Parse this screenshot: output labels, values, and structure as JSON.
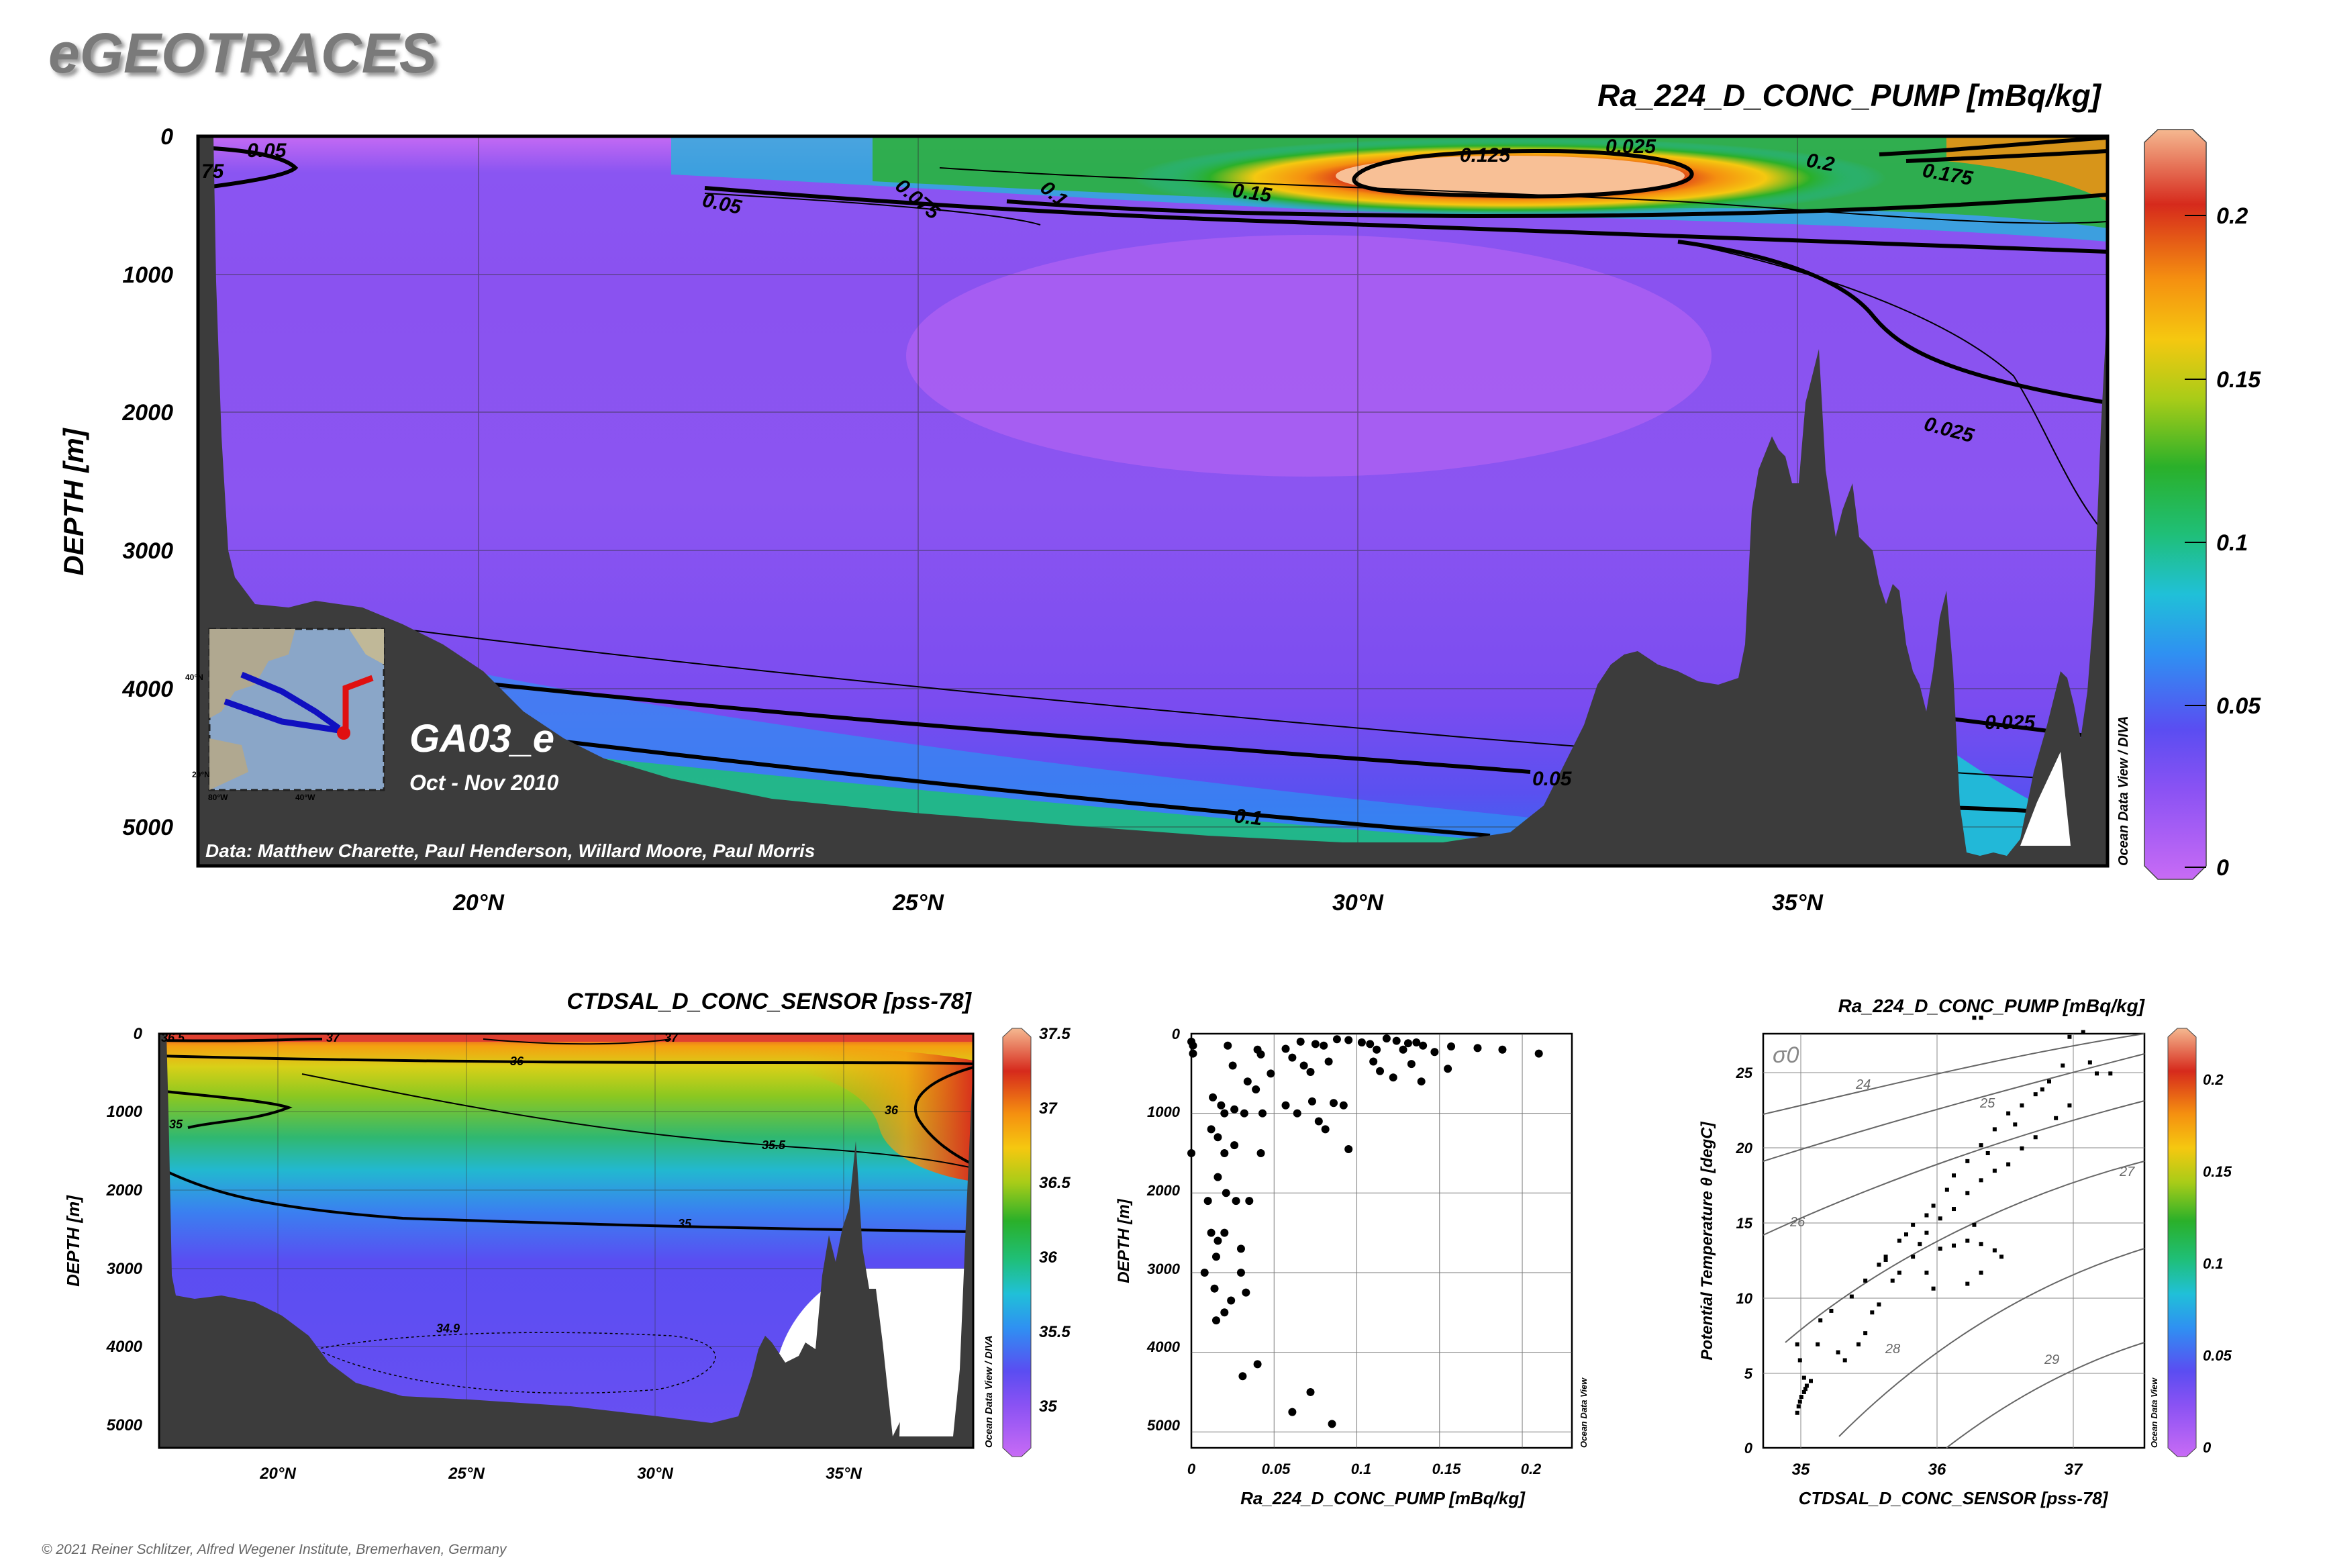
{
  "brand": "eGEOTRACES",
  "footer": "© 2021 Reiner Schlitzer, Alfred Wegener Institute, Bremerhaven, Germany",
  "colors": {
    "ocean_ramp": [
      "#c86bf5",
      "#9a5ef5",
      "#7c4df0",
      "#5a4df2",
      "#3a8cf2",
      "#22b8e8",
      "#1fc4a0",
      "#22b02c",
      "#a8cc18",
      "#f5c810",
      "#f59010",
      "#d62a1c",
      "#f5b890"
    ],
    "seafloor": "#3c3c3c",
    "contour": "#000000"
  },
  "chart_data": [
    {
      "type": "heatmap",
      "name": "main-section",
      "title": "Ra_224_D_CONC_PUMP [mBq/kg]",
      "ylabel": "DEPTH [m]",
      "xlabel": "",
      "x_ticks": [
        "20°N",
        "25°N",
        "30°N",
        "35°N"
      ],
      "y_ticks": [
        "0",
        "1000",
        "2000",
        "3000",
        "4000",
        "5000"
      ],
      "colorbar_ticks": [
        "0.2",
        "0.15",
        "0.1",
        "0.05",
        "0"
      ],
      "colorbar_range": [
        0,
        0.225
      ],
      "xlim": [
        16.8,
        38.5
      ],
      "ylim": [
        5300,
        0
      ],
      "contour_labels": [
        "0.05",
        "0.05",
        "0.075",
        "0.1",
        "0.15",
        "0.125",
        "0.025",
        "0.2",
        "0.175",
        "0.025",
        "0.025",
        "0.05",
        "0.1",
        "75"
      ],
      "cruise_label": "GA03_e",
      "cruise_dates": "Oct - Nov 2010",
      "credits": "Data: Matthew Charette, Paul Henderson, Willard Moore, Paul Morris",
      "watermark": "Ocean Data View / DIVA",
      "inset_map": {
        "lat_ticks": [
          "40°N",
          "20°N"
        ],
        "lon_ticks": [
          "80°W",
          "40°W"
        ]
      }
    },
    {
      "type": "heatmap",
      "name": "salinity-section",
      "title": "CTDSAL_D_CONC_SENSOR [pss-78]",
      "ylabel": "DEPTH [m]",
      "xlabel": "",
      "x_ticks": [
        "20°N",
        "25°N",
        "30°N",
        "35°N"
      ],
      "y_ticks": [
        "0",
        "1000",
        "2000",
        "3000",
        "4000",
        "5000"
      ],
      "colorbar_ticks": [
        "37.5",
        "37",
        "36.5",
        "36",
        "35.5",
        "35"
      ],
      "colorbar_range": [
        34.8,
        37.5
      ],
      "contour_labels": [
        "36.5",
        "37",
        "37",
        "36",
        "36",
        "35",
        "35.5",
        "35",
        "34.9"
      ],
      "watermark": "Ocean Data View / DIVA"
    },
    {
      "type": "scatter",
      "name": "depth-profile",
      "title": "",
      "xlabel": "Ra_224_D_CONC_PUMP [mBq/kg]",
      "ylabel": "DEPTH [m]",
      "xlim": [
        0,
        0.23
      ],
      "ylim": [
        5200,
        0
      ],
      "x_ticks": [
        "0",
        "0.05",
        "0.1",
        "0.15",
        "0.2"
      ],
      "y_ticks": [
        "0",
        "1000",
        "2000",
        "3000",
        "4000",
        "5000"
      ],
      "watermark": "Ocean Data View",
      "points": [
        [
          0.0,
          100
        ],
        [
          0.001,
          150
        ],
        [
          0.001,
          250
        ],
        [
          0.0,
          1500
        ],
        [
          0.022,
          150
        ],
        [
          0.04,
          200
        ],
        [
          0.042,
          260
        ],
        [
          0.057,
          190
        ],
        [
          0.066,
          100
        ],
        [
          0.075,
          130
        ],
        [
          0.08,
          150
        ],
        [
          0.088,
          70
        ],
        [
          0.095,
          80
        ],
        [
          0.103,
          110
        ],
        [
          0.108,
          130
        ],
        [
          0.112,
          200
        ],
        [
          0.118,
          60
        ],
        [
          0.124,
          90
        ],
        [
          0.128,
          200
        ],
        [
          0.131,
          120
        ],
        [
          0.136,
          110
        ],
        [
          0.14,
          150
        ],
        [
          0.147,
          230
        ],
        [
          0.157,
          160
        ],
        [
          0.173,
          180
        ],
        [
          0.188,
          200
        ],
        [
          0.21,
          250
        ],
        [
          0.025,
          400
        ],
        [
          0.034,
          600
        ],
        [
          0.048,
          500
        ],
        [
          0.061,
          300
        ],
        [
          0.068,
          400
        ],
        [
          0.072,
          480
        ],
        [
          0.083,
          350
        ],
        [
          0.11,
          350
        ],
        [
          0.114,
          470
        ],
        [
          0.122,
          550
        ],
        [
          0.133,
          380
        ],
        [
          0.139,
          600
        ],
        [
          0.155,
          440
        ],
        [
          0.073,
          850
        ],
        [
          0.086,
          870
        ],
        [
          0.092,
          900
        ],
        [
          0.013,
          800
        ],
        [
          0.018,
          900
        ],
        [
          0.02,
          1000
        ],
        [
          0.026,
          950
        ],
        [
          0.032,
          1000
        ],
        [
          0.039,
          700
        ],
        [
          0.043,
          1000
        ],
        [
          0.057,
          900
        ],
        [
          0.064,
          1000
        ],
        [
          0.077,
          1100
        ],
        [
          0.081,
          1200
        ],
        [
          0.095,
          1450
        ],
        [
          0.012,
          1200
        ],
        [
          0.016,
          1300
        ],
        [
          0.02,
          1500
        ],
        [
          0.026,
          1400
        ],
        [
          0.042,
          1500
        ],
        [
          0.016,
          1800
        ],
        [
          0.021,
          2000
        ],
        [
          0.027,
          2100
        ],
        [
          0.01,
          2100
        ],
        [
          0.035,
          2100
        ],
        [
          0.012,
          2500
        ],
        [
          0.016,
          2600
        ],
        [
          0.02,
          2500
        ],
        [
          0.015,
          2800
        ],
        [
          0.03,
          2700
        ],
        [
          0.008,
          3000
        ],
        [
          0.03,
          3000
        ],
        [
          0.014,
          3200
        ],
        [
          0.024,
          3350
        ],
        [
          0.033,
          3250
        ],
        [
          0.02,
          3500
        ],
        [
          0.015,
          3600
        ],
        [
          0.04,
          4150
        ],
        [
          0.031,
          4300
        ],
        [
          0.072,
          4500
        ],
        [
          0.061,
          4750
        ],
        [
          0.085,
          4900
        ]
      ]
    },
    {
      "type": "scatter",
      "name": "ts-diagram",
      "title": "Ra_224_D_CONC_PUMP [mBq/kg]",
      "xlabel": "CTDSAL_D_CONC_SENSOR [pss-78]",
      "ylabel": "Potential Temperature θ [degC]",
      "xlim": [
        34.7,
        37.5
      ],
      "ylim": [
        0,
        26
      ],
      "x_ticks": [
        "35",
        "36",
        "37"
      ],
      "y_ticks": [
        "0",
        "5",
        "10",
        "15",
        "20",
        "25"
      ],
      "colorbar_ticks": [
        "0.2",
        "0.15",
        "0.1",
        "0.05",
        "0"
      ],
      "colorbar_range": [
        0,
        0.225
      ],
      "density_label": "σ0",
      "isopycnal_labels": [
        "24",
        "25",
        "26",
        "27",
        "28",
        "29"
      ],
      "watermark": "Ocean Data View",
      "points": [
        [
          34.95,
          2.2
        ],
        [
          34.96,
          2.6
        ],
        [
          34.97,
          2.9
        ],
        [
          34.98,
          3.2
        ],
        [
          35.0,
          3.5
        ],
        [
          35.01,
          3.7
        ],
        [
          35.02,
          3.9
        ],
        [
          35.0,
          4.4
        ],
        [
          34.97,
          5.5
        ],
        [
          34.95,
          6.5
        ],
        [
          35.05,
          4.2
        ],
        [
          35.1,
          6.5
        ],
        [
          35.12,
          8.0
        ],
        [
          35.2,
          8.6
        ],
        [
          35.25,
          6.0
        ],
        [
          35.35,
          9.5
        ],
        [
          35.45,
          10.5
        ],
        [
          35.55,
          11.5
        ],
        [
          35.6,
          12.0
        ],
        [
          35.7,
          13.0
        ],
        [
          35.75,
          13.4
        ],
        [
          35.8,
          14.0
        ],
        [
          35.9,
          14.6
        ],
        [
          35.95,
          15.2
        ],
        [
          36.05,
          16.2
        ],
        [
          36.1,
          17.1
        ],
        [
          36.2,
          18.0
        ],
        [
          36.3,
          19.0
        ],
        [
          36.4,
          20.0
        ],
        [
          36.5,
          21.0
        ],
        [
          36.6,
          21.5
        ],
        [
          36.7,
          22.2
        ],
        [
          36.8,
          23.0
        ],
        [
          36.9,
          24.0
        ],
        [
          36.95,
          25.8
        ],
        [
          37.05,
          26.1
        ],
        [
          37.1,
          24.2
        ],
        [
          37.15,
          23.5
        ],
        [
          37.25,
          23.5
        ],
        [
          36.95,
          21.5
        ],
        [
          36.85,
          20.7
        ],
        [
          36.7,
          19.5
        ],
        [
          36.6,
          18.8
        ],
        [
          36.5,
          17.8
        ],
        [
          36.4,
          17.4
        ],
        [
          36.3,
          16.8
        ],
        [
          36.2,
          16.0
        ],
        [
          36.1,
          15.0
        ],
        [
          36.0,
          14.4
        ],
        [
          35.9,
          13.5
        ],
        [
          35.85,
          12.8
        ],
        [
          35.8,
          12.0
        ],
        [
          35.7,
          11.0
        ],
        [
          35.65,
          10.5
        ],
        [
          35.55,
          9.0
        ],
        [
          35.5,
          8.5
        ],
        [
          35.45,
          7.2
        ],
        [
          35.4,
          6.5
        ],
        [
          35.3,
          5.5
        ],
        [
          35.6,
          11.8
        ],
        [
          35.9,
          11.0
        ],
        [
          36.0,
          12.5
        ],
        [
          36.1,
          12.7
        ],
        [
          36.2,
          13.0
        ],
        [
          36.3,
          12.8
        ],
        [
          36.4,
          12.4
        ],
        [
          36.45,
          12.0
        ],
        [
          36.2,
          10.3
        ],
        [
          36.3,
          11.0
        ],
        [
          36.25,
          14.0
        ],
        [
          35.95,
          10.0
        ],
        [
          36.35,
          18.5
        ],
        [
          36.55,
          20.3
        ],
        [
          36.75,
          22.5
        ],
        [
          36.25,
          27.0
        ],
        [
          36.3,
          27.0
        ]
      ]
    }
  ]
}
